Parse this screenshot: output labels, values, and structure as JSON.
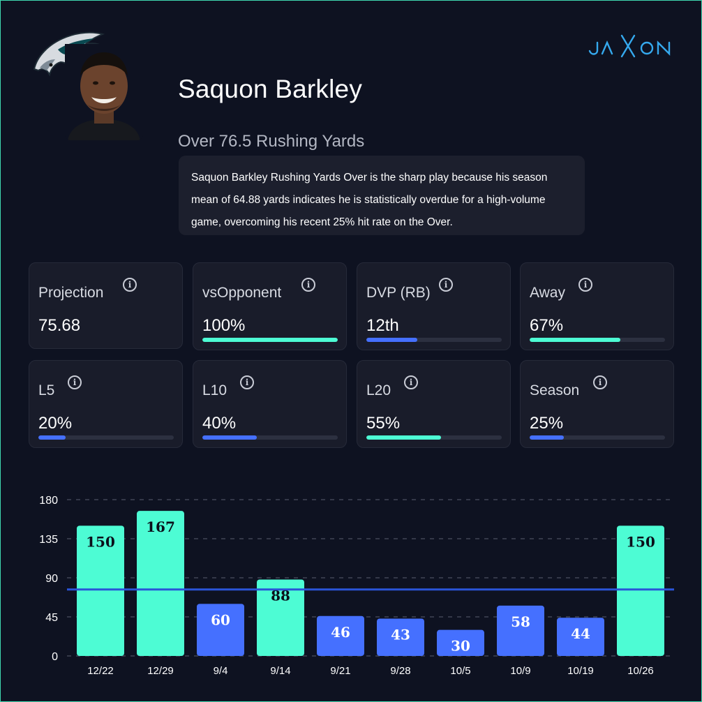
{
  "player": {
    "name": "Saquon Barkley",
    "prop": "Over 76.5 Rushing Yards",
    "analysis": "Saquon Barkley Rushing Yards Over is the sharp play because his season mean of 64.88 yards indicates he is statistically overdue for a high-volume game, overcoming his recent 25% hit rate on the Over."
  },
  "brand": {
    "name": "JAXON"
  },
  "icons": {
    "team": "eagles-logo-icon",
    "info": "info-icon",
    "player": "player-headshot"
  },
  "colors": {
    "hit": "#4dfcd4",
    "miss": "#4570ff",
    "line": "#2a54d8",
    "background": "#0e1221"
  },
  "stats": [
    {
      "label": "Projection",
      "value": "75.68",
      "bar": null,
      "color": null
    },
    {
      "label": "vsOpponent",
      "value": "100%",
      "bar": 1.0,
      "color": "#4dfcd4"
    },
    {
      "label": "DVP (RB)",
      "value": "12th",
      "bar": 0.375,
      "color": "#4570ff"
    },
    {
      "label": "Away",
      "value": "67%",
      "bar": 0.67,
      "color": "#4dfcd4"
    },
    {
      "label": "L5",
      "value": "20%",
      "bar": 0.2,
      "color": "#4570ff"
    },
    {
      "label": "L10",
      "value": "40%",
      "bar": 0.4,
      "color": "#4570ff"
    },
    {
      "label": "L20",
      "value": "55%",
      "bar": 0.55,
      "color": "#4dfcd4"
    },
    {
      "label": "Season",
      "value": "25%",
      "bar": 0.25,
      "color": "#4570ff"
    }
  ],
  "chart_data": {
    "type": "bar",
    "categories": [
      "12/22",
      "12/29",
      "9/4",
      "9/14",
      "9/21",
      "9/28",
      "10/5",
      "10/9",
      "10/19",
      "10/26"
    ],
    "values": [
      150,
      167,
      60,
      88,
      46,
      43,
      30,
      58,
      44,
      150
    ],
    "threshold": 76.5,
    "yticks": [
      0,
      45,
      90,
      135,
      180
    ],
    "ylim": [
      0,
      180
    ],
    "grid": true,
    "title": "",
    "xlabel": "",
    "ylabel": ""
  }
}
